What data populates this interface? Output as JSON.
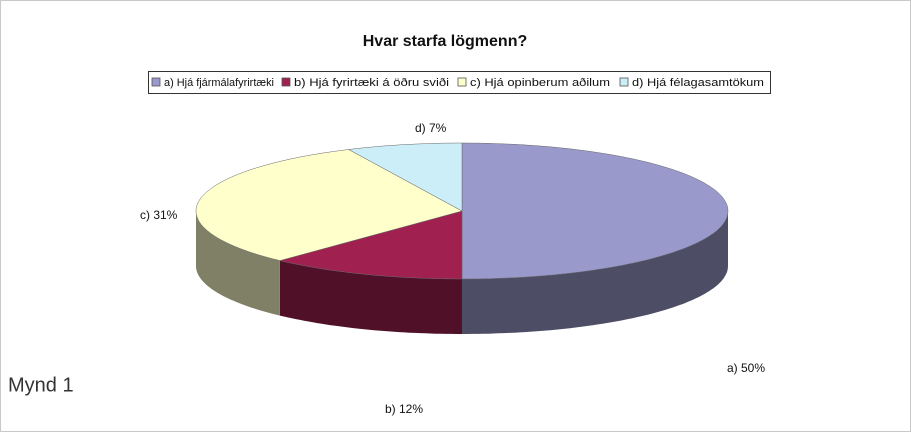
{
  "chart_data": {
    "type": "pie3d",
    "title": "Hvar starfa lögmenn?",
    "categories": [
      "a) Hjá fjármálafyrirtæki",
      "b) Hjá fyrirtæki á öðru sviði",
      "c) Hjá opinberum aðilum",
      "d) Hjá félagasamtökum"
    ],
    "values": [
      50,
      12,
      31,
      7
    ],
    "value_labels": [
      "a) 50%",
      "b) 12%",
      "c) 31%",
      "d) 7%"
    ],
    "colors": [
      "#9999cc",
      "#a0204f",
      "#ffffcc",
      "#cceef8"
    ],
    "legend": "top"
  },
  "caption": "Mynd 1"
}
